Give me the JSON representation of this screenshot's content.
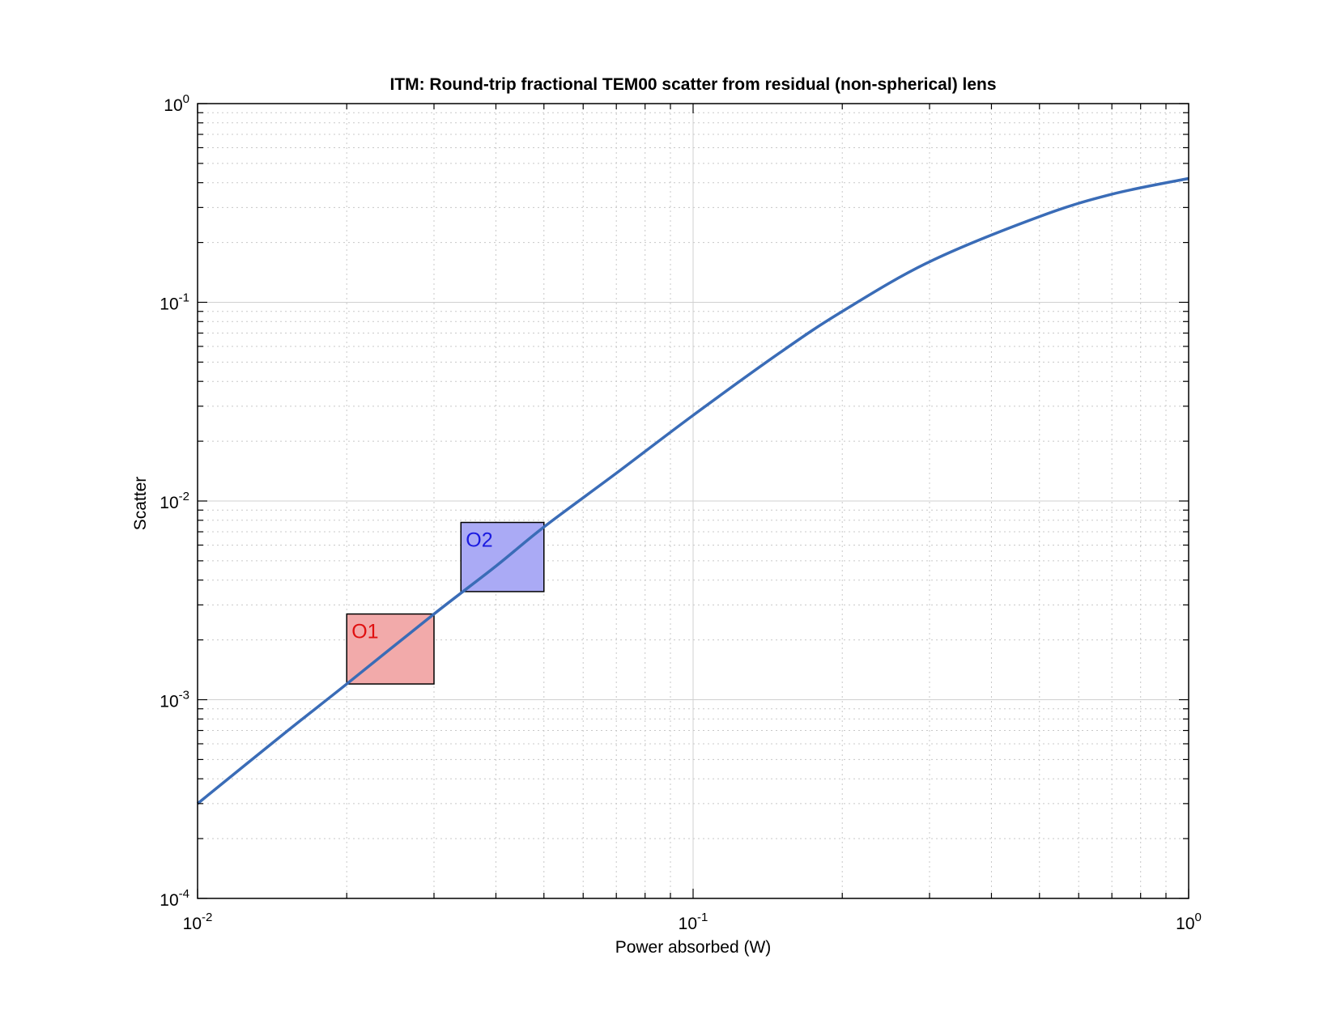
{
  "chart_data": {
    "type": "line",
    "title": "ITM: Round-trip fractional TEM00 scatter from residual (non-spherical) lens",
    "xlabel": "Power absorbed (W)",
    "ylabel": "Scatter",
    "x_scale": "log",
    "y_scale": "log",
    "xlim": [
      0.01,
      1
    ],
    "ylim": [
      0.0001,
      1
    ],
    "grid": true,
    "minor_grid": true,
    "x_ticks": [
      {
        "base": "10",
        "exp": "-2",
        "value": 0.01
      },
      {
        "base": "10",
        "exp": "-1",
        "value": 0.1
      },
      {
        "base": "10",
        "exp": "0",
        "value": 1
      }
    ],
    "y_ticks": [
      {
        "base": "10",
        "exp": "0",
        "value": 1
      },
      {
        "base": "10",
        "exp": "-1",
        "value": 0.1
      },
      {
        "base": "10",
        "exp": "-2",
        "value": 0.01
      },
      {
        "base": "10",
        "exp": "-3",
        "value": 0.001
      },
      {
        "base": "10",
        "exp": "-4",
        "value": 0.0001
      }
    ],
    "series": [
      {
        "color": "#3a6cb7",
        "x": [
          0.01,
          0.015,
          0.02,
          0.03,
          0.04,
          0.05,
          0.07,
          0.1,
          0.15,
          0.2,
          0.3,
          0.5,
          0.7,
          1.0
        ],
        "y": [
          0.0003,
          0.00068,
          0.0012,
          0.0027,
          0.0047,
          0.0074,
          0.0138,
          0.027,
          0.056,
          0.09,
          0.16,
          0.27,
          0.35,
          0.42
        ]
      }
    ],
    "regions": [
      {
        "label": "O1",
        "x": [
          0.02,
          0.03
        ],
        "y": [
          0.0012,
          0.0027
        ],
        "fill": "#f2aaaa",
        "label_color": "#e01010"
      },
      {
        "label": "O2",
        "x": [
          0.034,
          0.05
        ],
        "y": [
          0.0035,
          0.0078
        ],
        "fill": "#aaaaf5",
        "label_color": "#1a1ae0"
      }
    ]
  }
}
